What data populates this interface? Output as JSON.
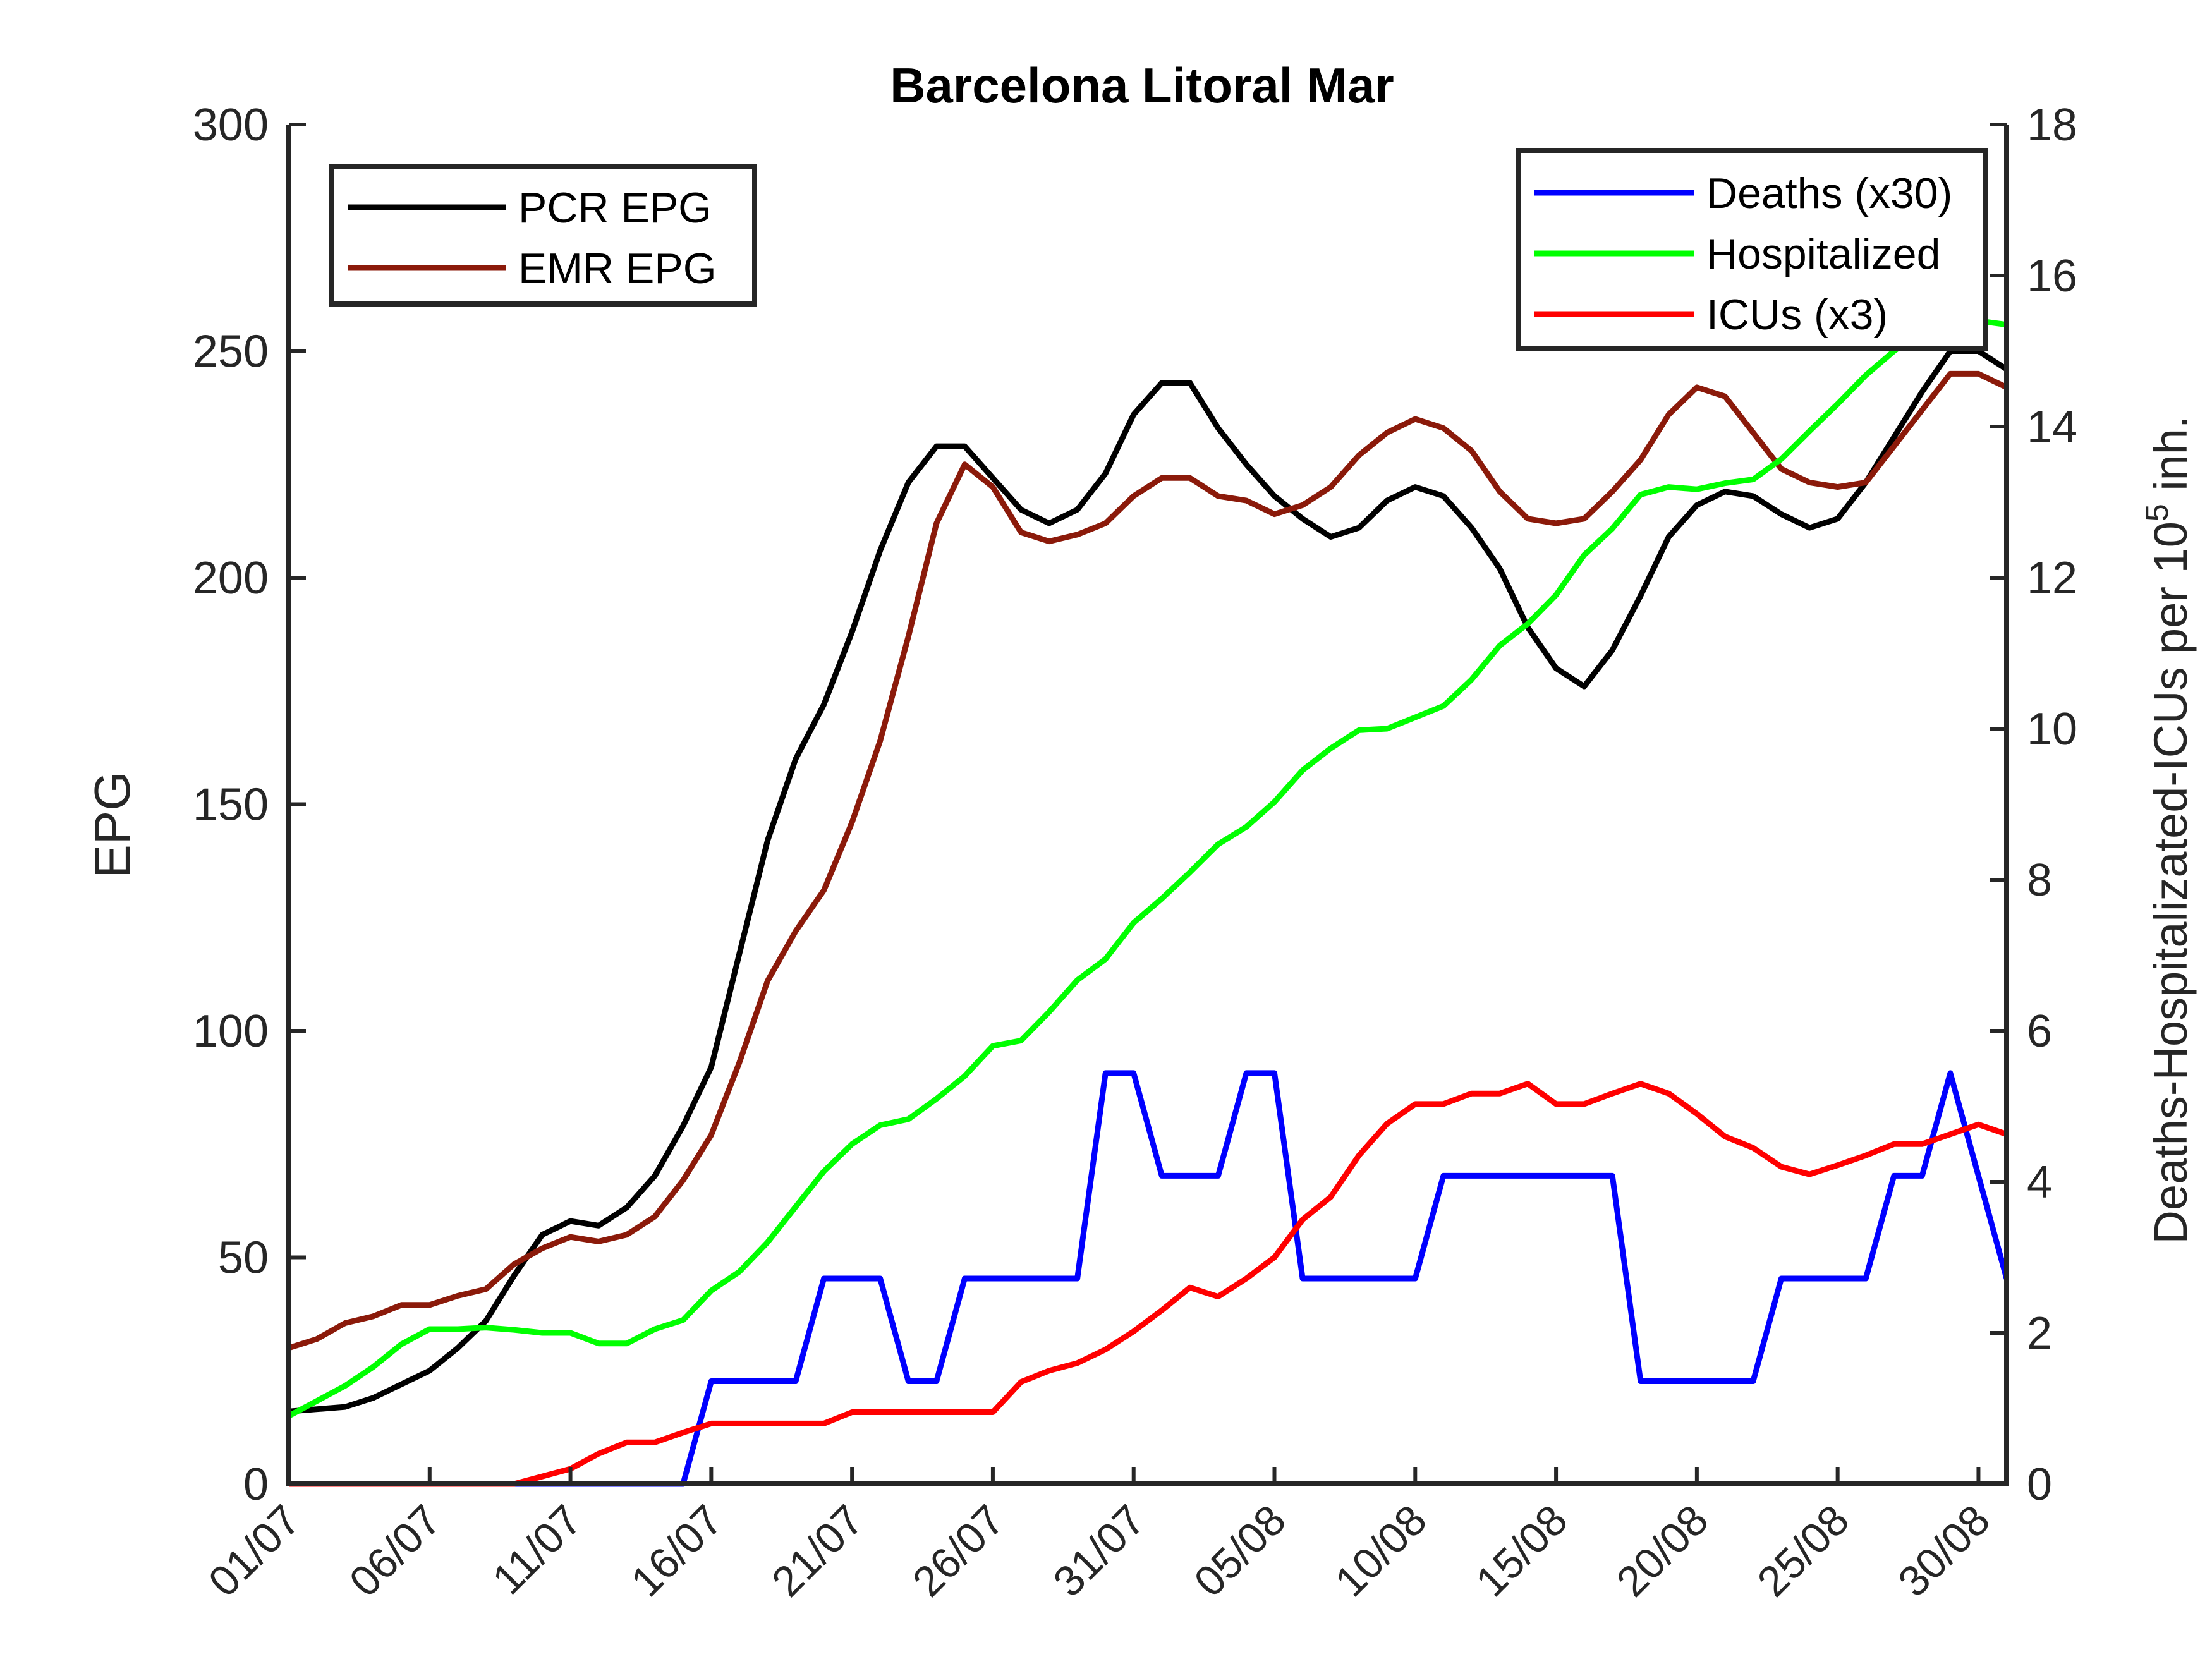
{
  "chart_data": {
    "type": "line",
    "title": "Barcelona Litoral Mar",
    "ylabel_left": "EPG",
    "ylabel_right": {
      "main": "Deaths-Hospitalizated-ICUs per 10",
      "superscript": "5",
      "suffix": " inh."
    },
    "x_tick_labels": [
      "01/07",
      "06/07",
      "11/07",
      "16/07",
      "21/07",
      "26/07",
      "31/07",
      "05/08",
      "10/08",
      "15/08",
      "20/08",
      "25/08",
      "30/08"
    ],
    "x_tick_days": [
      0,
      5,
      10,
      15,
      20,
      25,
      30,
      35,
      40,
      45,
      50,
      55,
      60
    ],
    "xlim_days": [
      0,
      61
    ],
    "ylim_left": [
      0,
      300
    ],
    "y_ticks_left": [
      0,
      50,
      100,
      150,
      200,
      250,
      300
    ],
    "ylim_right": [
      0,
      18
    ],
    "y_ticks_right": [
      0,
      2,
      4,
      6,
      8,
      10,
      12,
      14,
      16,
      18
    ],
    "grid": false,
    "legends": [
      {
        "placement": "top-left",
        "entries": [
          "PCR EPG",
          "EMR EPG"
        ]
      },
      {
        "placement": "top-right",
        "entries": [
          "Deaths (x30)",
          "Hospitalized",
          "ICUs (x3)"
        ]
      }
    ],
    "series": [
      {
        "name": "PCR EPG",
        "axis": "left",
        "color": "#000000",
        "values": [
          16,
          16.5,
          17,
          19,
          22,
          25,
          30,
          36,
          46,
          55,
          58,
          57,
          61,
          68,
          79,
          92,
          117,
          142,
          160,
          172,
          188,
          206,
          221,
          229,
          229,
          222,
          215,
          212,
          215,
          223,
          236,
          243,
          243,
          233,
          225,
          218,
          213,
          209,
          211,
          217,
          220,
          218,
          211,
          202,
          189,
          180,
          176,
          184,
          196,
          209,
          216,
          219,
          218,
          214,
          211,
          213,
          221,
          231,
          241,
          250,
          250,
          246
        ]
      },
      {
        "name": "EMR EPG",
        "axis": "left",
        "color": "#8B1A0A",
        "values": [
          30,
          32,
          35.5,
          37,
          39.5,
          39.5,
          41.5,
          43,
          48.5,
          52,
          54.5,
          53.5,
          55,
          59,
          67,
          77,
          93,
          111,
          122,
          131,
          146,
          164,
          187,
          212,
          225,
          220,
          210,
          208,
          209.5,
          212,
          218,
          222,
          222,
          218,
          217,
          214,
          216,
          220,
          227,
          232,
          235,
          233,
          228,
          219,
          213,
          212,
          213,
          219,
          226,
          236,
          242,
          240,
          232,
          224,
          221,
          220,
          221,
          229,
          237,
          245,
          245,
          242
        ]
      },
      {
        "name": "Deaths (x30)",
        "axis": "right",
        "color": "#0000FF",
        "values": [
          0,
          0,
          0,
          0,
          0,
          0,
          0,
          0,
          0,
          0,
          0,
          0,
          0,
          0,
          0,
          1.36,
          1.36,
          1.36,
          1.36,
          2.72,
          2.72,
          2.72,
          1.36,
          1.36,
          2.72,
          2.72,
          2.72,
          2.72,
          2.72,
          5.44,
          5.44,
          4.08,
          4.08,
          4.08,
          5.44,
          5.44,
          2.72,
          2.72,
          2.72,
          2.72,
          2.72,
          4.08,
          4.08,
          4.08,
          4.08,
          4.08,
          4.08,
          4.08,
          1.36,
          1.36,
          1.36,
          1.36,
          1.36,
          2.72,
          2.72,
          2.72,
          2.72,
          4.08,
          4.08,
          5.44,
          4.08,
          2.72
        ]
      },
      {
        "name": "Hospitalized",
        "axis": "right",
        "color": "#00FF00",
        "values": [
          0.9,
          1.1,
          1.3,
          1.55,
          1.85,
          2.05,
          2.05,
          2.07,
          2.04,
          2.0,
          2.0,
          1.86,
          1.86,
          2.05,
          2.17,
          2.56,
          2.81,
          3.2,
          3.67,
          4.14,
          4.5,
          4.75,
          4.83,
          5.1,
          5.4,
          5.8,
          5.87,
          6.25,
          6.67,
          6.95,
          7.43,
          7.75,
          8.1,
          8.47,
          8.7,
          9.03,
          9.45,
          9.74,
          9.98,
          10.0,
          10.15,
          10.3,
          10.65,
          11.1,
          11.39,
          11.77,
          12.3,
          12.65,
          13.1,
          13.2,
          13.17,
          13.25,
          13.3,
          13.57,
          13.94,
          14.3,
          14.68,
          15.0,
          15.27,
          15.4,
          15.4,
          15.35
        ]
      },
      {
        "name": "ICUs (x3)",
        "axis": "right",
        "color": "#FF0000",
        "values": [
          0,
          0,
          0,
          0,
          0,
          0,
          0,
          0,
          0,
          0.1,
          0.2,
          0.4,
          0.55,
          0.55,
          0.68,
          0.8,
          0.8,
          0.8,
          0.8,
          0.8,
          0.95,
          0.95,
          0.95,
          0.95,
          0.95,
          0.95,
          1.35,
          1.5,
          1.6,
          1.78,
          2.02,
          2.3,
          2.6,
          2.48,
          2.72,
          3.0,
          3.5,
          3.8,
          4.35,
          4.77,
          5.03,
          5.03,
          5.17,
          5.17,
          5.3,
          5.03,
          5.03,
          5.17,
          5.3,
          5.17,
          4.9,
          4.6,
          4.45,
          4.2,
          4.1,
          4.22,
          4.35,
          4.5,
          4.5,
          4.63,
          4.76,
          4.63
        ]
      }
    ]
  }
}
